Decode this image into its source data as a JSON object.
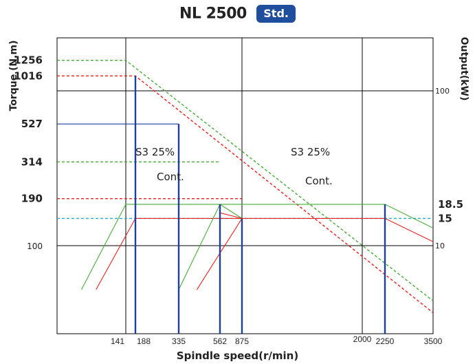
{
  "header": {
    "title": "NL 2500",
    "badge": "Std."
  },
  "axes": {
    "xlabel": "Spindle speed(r/min)",
    "ylabel_left": "Torque (N.m)",
    "ylabel_right": "Output(kW)"
  },
  "colors": {
    "blue": "#1f3f9e",
    "red": "#e8201c",
    "green": "#45ad35",
    "cyan": "#1fa9d8",
    "grid": "#000000"
  },
  "chart_data": {
    "type": "line",
    "x_ticks": [
      141,
      188,
      335,
      562,
      875,
      2000,
      2250,
      3500
    ],
    "torque_ticks": [
      1256,
      1016,
      527,
      314,
      190,
      100
    ],
    "output_ticks": [
      100,
      18.5,
      15,
      10
    ],
    "annotations": [
      "S3 25%",
      "Cont.",
      "S3 25%",
      "Cont."
    ],
    "series": [
      {
        "name": "S3 25%",
        "quantity": "torque",
        "style": "dashed",
        "color": "green",
        "points": [
          [
            0,
            1256
          ],
          [
            141,
            1256
          ],
          [
            3500,
            47
          ]
        ]
      },
      {
        "name": "Cont.",
        "quantity": "torque",
        "style": "dashed",
        "color": "red",
        "points": [
          [
            0,
            1016
          ],
          [
            188,
            1016
          ],
          [
            3500,
            40
          ]
        ]
      },
      {
        "quantity": "torque",
        "style": "solid",
        "color": "blue",
        "points": [
          [
            0,
            527
          ],
          [
            335,
            527
          ]
        ]
      },
      {
        "quantity": "torque",
        "style": "dashed",
        "color": "green",
        "points": [
          [
            0,
            314
          ],
          [
            562,
            314
          ]
        ]
      },
      {
        "quantity": "torque",
        "style": "dashed",
        "color": "red",
        "points": [
          [
            0,
            190
          ],
          [
            875,
            190
          ]
        ]
      },
      {
        "quantity": "output",
        "style": "dashed",
        "color": "cyan",
        "points": [
          [
            0,
            15
          ],
          [
            3500,
            15
          ]
        ]
      },
      {
        "name": "S3 25%",
        "quantity": "output",
        "style": "solid",
        "color": "green",
        "points": [
          [
            50,
            5.2
          ],
          [
            141,
            18.5
          ],
          [
            2250,
            18.5
          ],
          [
            3500,
            13
          ]
        ]
      },
      {
        "name": "Cont.",
        "quantity": "output",
        "style": "solid",
        "color": "red",
        "points": [
          [
            80,
            5.2
          ],
          [
            188,
            15
          ],
          [
            2250,
            15
          ],
          [
            3500,
            10.6
          ]
        ]
      },
      {
        "quantity": "output",
        "style": "solid",
        "color": "green",
        "points": [
          [
            335,
            5.2
          ],
          [
            562,
            18.5
          ],
          [
            875,
            15
          ]
        ]
      },
      {
        "quantity": "output",
        "style": "solid",
        "color": "red",
        "points": [
          [
            435,
            5.2
          ],
          [
            875,
            15
          ]
        ]
      },
      {
        "quantity": "output",
        "style": "solid",
        "color": "red",
        "points": [
          [
            562,
            16.3
          ],
          [
            875,
            15
          ]
        ]
      }
    ],
    "markers": [
      {
        "x": 188,
        "top": 1016,
        "quantity": "torque"
      },
      {
        "x": 335,
        "top": 527,
        "quantity": "torque"
      },
      {
        "x": 562,
        "top": 18.5,
        "quantity": "output"
      },
      {
        "x": 875,
        "top": 15,
        "quantity": "output"
      },
      {
        "x": 2250,
        "top": 18.5,
        "quantity": "output"
      }
    ],
    "grid": true
  }
}
